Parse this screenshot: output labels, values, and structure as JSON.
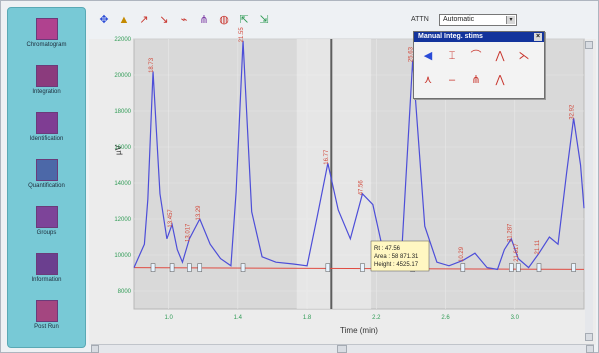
{
  "navigation": {
    "items": [
      {
        "label": "Chromatogram",
        "icon": "chromatogram-icon"
      },
      {
        "label": "Integration",
        "icon": "integration-icon"
      },
      {
        "label": "Identification",
        "icon": "identification-icon"
      },
      {
        "label": "Quantification",
        "icon": "quantification-icon"
      },
      {
        "label": "Groups",
        "icon": "groups-icon"
      },
      {
        "label": "Information",
        "icon": "information-icon"
      },
      {
        "label": "Post Run",
        "icon": "post-run-icon"
      }
    ]
  },
  "toolbar": {
    "buttons": [
      "move-icon",
      "peak-icon",
      "arrow-tool-icon",
      "drop-line-icon",
      "baseline-icon",
      "split-peak-icon",
      "shoulder-icon",
      "expand-icon",
      "contract-icon"
    ],
    "mode_label": "ATTN",
    "mode_value": "Automatic"
  },
  "palette": {
    "title": "Manual Integ. stims",
    "buttons": [
      "left-arrow-icon",
      "valley-icon",
      "overlap-icon",
      "tangent-icon",
      "skim-icon",
      "split-icon",
      "dash-icon",
      "peak-mark-icon",
      "peak-width-icon"
    ]
  },
  "chart_data": {
    "type": "line",
    "title": "",
    "xlabel": "Time (min)",
    "ylabel": "µV",
    "xlim": [
      0.8,
      3.4
    ],
    "ylim": [
      7000,
      22000
    ],
    "x_ticks": [
      1.0,
      1.4,
      1.8,
      2.2,
      2.6,
      3.0
    ],
    "y_ticks": [
      8000,
      10000,
      12000,
      14000,
      16000,
      18000,
      20000,
      22000
    ],
    "series": [
      {
        "name": "",
        "points": [
          [
            0.8,
            9300
          ],
          [
            0.86,
            10600
          ],
          [
            0.88,
            13100
          ],
          [
            0.91,
            20200
          ],
          [
            0.95,
            13400
          ],
          [
            0.99,
            10900
          ],
          [
            1.02,
            11700
          ],
          [
            1.05,
            10300
          ],
          [
            1.08,
            9600
          ],
          [
            1.12,
            10900
          ],
          [
            1.18,
            12000
          ],
          [
            1.24,
            10600
          ],
          [
            1.3,
            9800
          ],
          [
            1.36,
            9400
          ],
          [
            1.39,
            13500
          ],
          [
            1.43,
            21900
          ],
          [
            1.48,
            12400
          ],
          [
            1.54,
            9900
          ],
          [
            1.62,
            9600
          ],
          [
            1.72,
            9500
          ],
          [
            1.8,
            9400
          ],
          [
            1.86,
            12200
          ],
          [
            1.92,
            15100
          ],
          [
            1.98,
            12500
          ],
          [
            2.05,
            10900
          ],
          [
            2.12,
            13400
          ],
          [
            2.18,
            12800
          ],
          [
            2.24,
            10200
          ],
          [
            2.3,
            9400
          ],
          [
            2.35,
            10700
          ],
          [
            2.41,
            20800
          ],
          [
            2.48,
            11600
          ],
          [
            2.55,
            9600
          ],
          [
            2.62,
            9400
          ],
          [
            2.7,
            9700
          ],
          [
            2.77,
            10100
          ],
          [
            2.84,
            9300
          ],
          [
            2.9,
            9200
          ],
          [
            2.94,
            10300
          ],
          [
            2.98,
            10900
          ],
          [
            3.02,
            9800
          ],
          [
            3.08,
            9300
          ],
          [
            3.14,
            10100
          ],
          [
            3.2,
            11000
          ],
          [
            3.25,
            10600
          ],
          [
            3.3,
            14600
          ],
          [
            3.34,
            17600
          ],
          [
            3.38,
            15000
          ],
          [
            3.4,
            12600
          ]
        ]
      }
    ],
    "baseline": [
      [
        0.8,
        9300
      ],
      [
        3.4,
        9200
      ]
    ],
    "labels": [
      {
        "x": 0.91,
        "y": 20200,
        "text": "18.73"
      },
      {
        "x": 1.02,
        "y": 11700,
        "text": "13.457"
      },
      {
        "x": 1.12,
        "y": 10900,
        "text": "13.017"
      },
      {
        "x": 1.18,
        "y": 12000,
        "text": "13.29"
      },
      {
        "x": 1.43,
        "y": 21900,
        "text": "21.55"
      },
      {
        "x": 1.92,
        "y": 15100,
        "text": "16.77"
      },
      {
        "x": 2.12,
        "y": 13400,
        "text": "47.56"
      },
      {
        "x": 2.41,
        "y": 20800,
        "text": "25.63"
      },
      {
        "x": 2.7,
        "y": 9700,
        "text": "10.29"
      },
      {
        "x": 2.98,
        "y": 10900,
        "text": "31.287"
      },
      {
        "x": 3.02,
        "y": 9800,
        "text": "21.617"
      },
      {
        "x": 3.14,
        "y": 10100,
        "text": "21.11"
      },
      {
        "x": 3.34,
        "y": 17600,
        "text": "32.92"
      }
    ],
    "selection_band": [
      1.74,
      2.17
    ],
    "selection_line": 1.94,
    "tooltip": {
      "lines": [
        "Rt : 47.56",
        "Area : 58 871.31",
        "Height : 4525.17"
      ]
    }
  },
  "scroll": {
    "h_thumb": "center",
    "v_thumb": "top"
  }
}
